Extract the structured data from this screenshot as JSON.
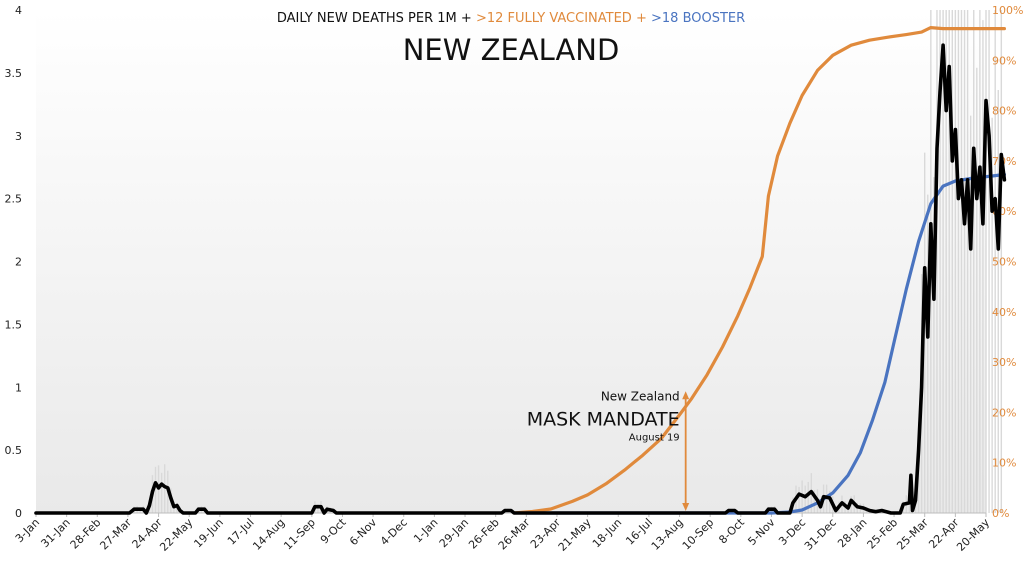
{
  "chart_data": {
    "type": "line",
    "title": {
      "prefix": "DAILY NEW DEATHS PER 1M + ",
      "vaccinated": ">12 FULLY VACCINATED",
      "joiner": " + ",
      "booster": ">18 BOOSTER"
    },
    "subtitle": "NEW ZEALAND",
    "colors": {
      "deaths": "#000000",
      "vaccinated": "#e08a3c",
      "booster": "#4a74c0",
      "raw_bars": "#d9d9d9"
    },
    "y_left": {
      "ticks": [
        "0",
        "0.5",
        "1",
        "1.5",
        "2",
        "2.5",
        "3",
        "3.5",
        "4"
      ],
      "range": [
        0,
        4
      ]
    },
    "y_right": {
      "ticks": [
        "0%",
        "10%",
        "20%",
        "30%",
        "40%",
        "50%",
        "60%",
        "70%",
        "80%",
        "90%",
        "100%"
      ],
      "range": [
        0,
        100
      ]
    },
    "x_labels": [
      "3-Jan",
      "31-Jan",
      "28-Feb",
      "27-Mar",
      "24-Apr",
      "22-May",
      "19-Jun",
      "17-Jul",
      "14-Aug",
      "11-Sep",
      "9-Oct",
      "6-Nov",
      "4-Dec",
      "1-Jan",
      "29-Jan",
      "26-Feb",
      "26-Mar",
      "23-Apr",
      "21-May",
      "18-Jun",
      "16-Jul",
      "13-Aug",
      "10-Sep",
      "8-Oct",
      "5-Nov",
      "3-Dec",
      "31-Dec",
      "28-Jan",
      "25-Feb",
      "25-Mar",
      "22-Apr",
      "20-May"
    ],
    "annotation": {
      "country": "New Zealand",
      "label": "MASK MANDATE",
      "date": "August 19",
      "x_index": 21.2,
      "y_top": 0.96
    },
    "series": [
      {
        "name": "Daily new deaths per 1M",
        "axis": "left",
        "points": [
          [
            0,
            0
          ],
          [
            3.05,
            0
          ],
          [
            3.2,
            0.03
          ],
          [
            3.5,
            0.03
          ],
          [
            3.6,
            0
          ],
          [
            3.7,
            0.06
          ],
          [
            3.8,
            0.17
          ],
          [
            3.9,
            0.24
          ],
          [
            4.0,
            0.2
          ],
          [
            4.1,
            0.23
          ],
          [
            4.2,
            0.21
          ],
          [
            4.3,
            0.2
          ],
          [
            4.4,
            0.12
          ],
          [
            4.5,
            0.05
          ],
          [
            4.6,
            0.06
          ],
          [
            4.7,
            0.02
          ],
          [
            4.8,
            0
          ],
          [
            5.2,
            0
          ],
          [
            5.3,
            0.03
          ],
          [
            5.5,
            0.03
          ],
          [
            5.6,
            0
          ],
          [
            9.0,
            0
          ],
          [
            9.1,
            0.05
          ],
          [
            9.3,
            0.05
          ],
          [
            9.4,
            0
          ],
          [
            9.5,
            0.03
          ],
          [
            9.7,
            0.02
          ],
          [
            9.8,
            0
          ],
          [
            15.2,
            0
          ],
          [
            15.3,
            0.02
          ],
          [
            15.5,
            0.02
          ],
          [
            15.6,
            0
          ],
          [
            22.5,
            0
          ],
          [
            22.6,
            0.02
          ],
          [
            22.8,
            0.02
          ],
          [
            22.9,
            0
          ],
          [
            23.8,
            0
          ],
          [
            23.9,
            0.03
          ],
          [
            24.1,
            0.03
          ],
          [
            24.2,
            0
          ],
          [
            24.6,
            0
          ],
          [
            24.7,
            0.08
          ],
          [
            24.9,
            0.15
          ],
          [
            25.1,
            0.13
          ],
          [
            25.3,
            0.17
          ],
          [
            25.5,
            0.1
          ],
          [
            25.6,
            0.05
          ],
          [
            25.7,
            0.13
          ],
          [
            25.9,
            0.12
          ],
          [
            26.1,
            0.02
          ],
          [
            26.3,
            0.08
          ],
          [
            26.5,
            0.04
          ],
          [
            26.6,
            0.1
          ],
          [
            26.8,
            0.05
          ],
          [
            27.0,
            0.04
          ],
          [
            27.2,
            0.02
          ],
          [
            27.4,
            0.01
          ],
          [
            27.6,
            0.02
          ],
          [
            27.9,
            0
          ],
          [
            28.2,
            0
          ],
          [
            28.3,
            0.07
          ],
          [
            28.5,
            0.08
          ],
          [
            28.55,
            0.3
          ],
          [
            28.6,
            0.02
          ],
          [
            28.7,
            0.1
          ],
          [
            28.8,
            0.5
          ],
          [
            28.9,
            1.0
          ],
          [
            29.0,
            1.95
          ],
          [
            29.1,
            1.4
          ],
          [
            29.2,
            2.3
          ],
          [
            29.3,
            1.7
          ],
          [
            29.4,
            2.9
          ],
          [
            29.5,
            3.35
          ],
          [
            29.6,
            3.72
          ],
          [
            29.7,
            3.2
          ],
          [
            29.8,
            3.55
          ],
          [
            29.9,
            2.8
          ],
          [
            30.0,
            3.05
          ],
          [
            30.1,
            2.5
          ],
          [
            30.2,
            2.65
          ],
          [
            30.3,
            2.3
          ],
          [
            30.4,
            2.65
          ],
          [
            30.5,
            2.1
          ],
          [
            30.6,
            2.9
          ],
          [
            30.7,
            2.5
          ],
          [
            30.8,
            2.75
          ],
          [
            30.9,
            2.3
          ],
          [
            31.0,
            3.28
          ],
          [
            31.1,
            3.0
          ],
          [
            31.2,
            2.4
          ],
          [
            31.3,
            2.5
          ],
          [
            31.4,
            2.1
          ],
          [
            31.5,
            2.85
          ],
          [
            31.6,
            2.65
          ]
        ]
      },
      {
        "name": ">12 Fully vaccinated",
        "axis": "right",
        "points": [
          [
            15.6,
            0
          ],
          [
            16.2,
            0.3
          ],
          [
            16.8,
            0.8
          ],
          [
            17.5,
            2.3
          ],
          [
            18.0,
            3.6
          ],
          [
            18.6,
            5.8
          ],
          [
            19.2,
            8.5
          ],
          [
            19.8,
            11.5
          ],
          [
            20.4,
            14.8
          ],
          [
            21.0,
            19.5
          ],
          [
            21.4,
            22.8
          ],
          [
            21.9,
            27.5
          ],
          [
            22.4,
            33.0
          ],
          [
            22.9,
            39.2
          ],
          [
            23.3,
            44.8
          ],
          [
            23.7,
            51.0
          ],
          [
            23.9,
            63.0
          ],
          [
            24.2,
            71.0
          ],
          [
            24.6,
            77.5
          ],
          [
            25.0,
            83.0
          ],
          [
            25.5,
            88.0
          ],
          [
            26.0,
            91.0
          ],
          [
            26.6,
            93.0
          ],
          [
            27.2,
            94.0
          ],
          [
            27.8,
            94.6
          ],
          [
            28.4,
            95.1
          ],
          [
            28.9,
            95.6
          ],
          [
            29.2,
            96.5
          ],
          [
            29.6,
            96.3
          ],
          [
            31.6,
            96.3
          ]
        ]
      },
      {
        "name": ">18 Booster",
        "axis": "right",
        "points": [
          [
            16.0,
            0
          ],
          [
            24.0,
            0
          ],
          [
            24.6,
            0.2
          ],
          [
            25.0,
            0.6
          ],
          [
            25.5,
            2.0
          ],
          [
            26.0,
            4.0
          ],
          [
            26.5,
            7.5
          ],
          [
            26.9,
            12.0
          ],
          [
            27.3,
            18.5
          ],
          [
            27.7,
            26.0
          ],
          [
            28.0,
            34.0
          ],
          [
            28.4,
            44.5
          ],
          [
            28.8,
            54.0
          ],
          [
            29.2,
            61.5
          ],
          [
            29.6,
            65.0
          ],
          [
            30.0,
            66.0
          ],
          [
            30.6,
            66.6
          ],
          [
            31.2,
            67.0
          ],
          [
            31.6,
            67.3
          ]
        ]
      }
    ]
  }
}
